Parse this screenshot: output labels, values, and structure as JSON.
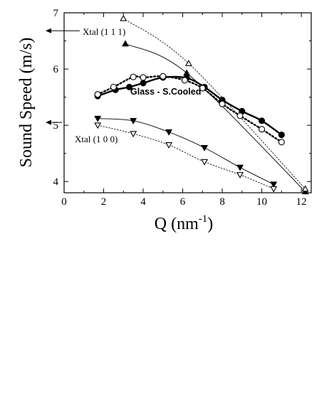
{
  "chart_data": {
    "type": "scatter",
    "title": "",
    "xlabel_main": "Q (nm",
    "xlabel_sup": "-1",
    "xlabel_close": ")",
    "ylabel": "Sound Speed (m/s)",
    "xlim": [
      0,
      12.5
    ],
    "ylim": [
      3.8,
      7.0
    ],
    "x_ticks": [
      0,
      2,
      4,
      6,
      8,
      10,
      12
    ],
    "y_ticks": [
      4,
      5,
      6,
      7
    ],
    "annotations": {
      "xtal111": "Xtal (1 1 1)",
      "xtal100": "Xtal (1 0 0)",
      "glass": "Glass - S.Cooled"
    },
    "arrow_levels": {
      "xtal111": 6.68,
      "xtal100": 5.05
    },
    "series": [
      {
        "marker": "filled-circle",
        "line": "thick-solid",
        "color": "#000000",
        "x": [
          1.7,
          2.6,
          3.3,
          4.0,
          5.0,
          6.2,
          7.1,
          8.0,
          9.0,
          10.0,
          11.0
        ],
        "y": [
          5.52,
          5.63,
          5.68,
          5.75,
          5.85,
          5.84,
          5.68,
          5.45,
          5.25,
          5.08,
          4.83
        ]
      },
      {
        "marker": "open-circle",
        "line": "thick-dotted",
        "color": "#000000",
        "x": [
          1.7,
          2.5,
          3.5,
          4.0,
          5.0,
          6.1,
          7.0,
          8.0,
          8.9,
          10.0,
          11.0
        ],
        "y": [
          5.55,
          5.68,
          5.86,
          5.85,
          5.87,
          5.8,
          5.66,
          5.38,
          5.17,
          4.93,
          4.7
        ]
      },
      {
        "marker": "filled-triangle-up",
        "line": "thin-solid",
        "color": "#000000",
        "x": [
          3.1,
          6.2,
          12.2
        ],
        "y": [
          6.45,
          5.93,
          3.82
        ]
      },
      {
        "marker": "open-triangle-up",
        "line": "thin-dotted",
        "color": "#000000",
        "x": [
          3.0,
          6.3,
          12.2
        ],
        "y": [
          6.9,
          6.1,
          3.87
        ]
      },
      {
        "marker": "filled-triangle-down",
        "line": "thin-solid",
        "color": "#000000",
        "x": [
          1.7,
          3.5,
          5.3,
          7.1,
          8.9,
          10.6
        ],
        "y": [
          5.12,
          5.08,
          4.88,
          4.6,
          4.25,
          3.95
        ]
      },
      {
        "marker": "open-triangle-down",
        "line": "thin-dotted",
        "color": "#000000",
        "x": [
          1.7,
          3.5,
          5.3,
          7.1,
          8.9,
          10.6
        ],
        "y": [
          5.0,
          4.85,
          4.65,
          4.35,
          4.12,
          3.87
        ]
      }
    ]
  }
}
